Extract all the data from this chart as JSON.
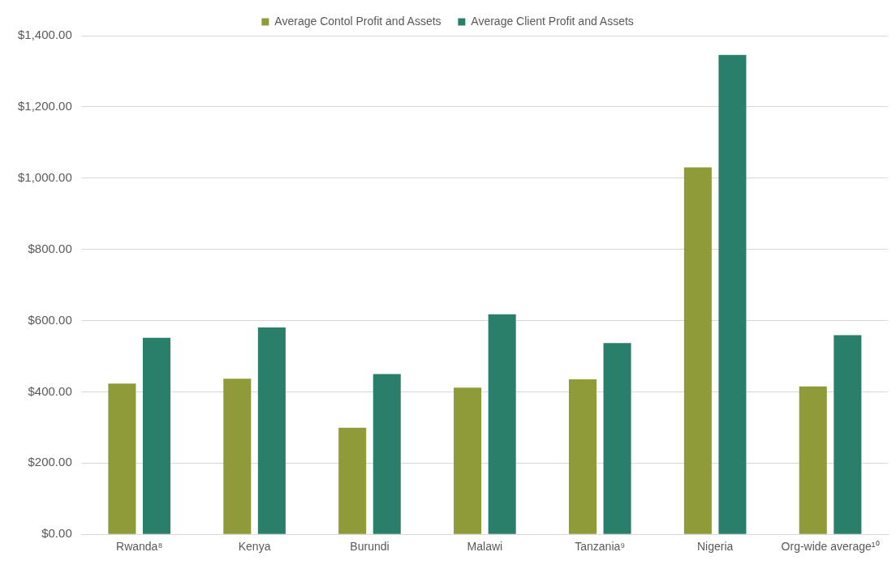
{
  "chart_data": {
    "type": "bar",
    "categories": [
      "Rwanda⁸",
      "Kenya",
      "Burundi",
      "Malawi",
      "Tanzania⁹",
      "Nigeria",
      "Org-wide average¹⁰"
    ],
    "series": [
      {
        "name": "Average Contol Profit and Assets",
        "color": "#8f9a38",
        "values": [
          423,
          437,
          299,
          412,
          435,
          1030,
          415
        ]
      },
      {
        "name": "Average Client Profit and Assets",
        "color": "#2a7f6a",
        "values": [
          552,
          581,
          450,
          618,
          537,
          1346,
          559
        ]
      }
    ],
    "ylim": [
      0,
      1400
    ],
    "yticks": [
      {
        "value": 0,
        "label": "$0.00"
      },
      {
        "value": 200,
        "label": "$200.00"
      },
      {
        "value": 400,
        "label": "$400.00"
      },
      {
        "value": 600,
        "label": "$600.00"
      },
      {
        "value": 800,
        "label": "$800.00"
      },
      {
        "value": 1000,
        "label": "$1,000.00"
      },
      {
        "value": 1200,
        "label": "$1,200.00"
      },
      {
        "value": 1400,
        "label": "$1,400.00"
      }
    ],
    "grid": "y",
    "legend": "top"
  }
}
